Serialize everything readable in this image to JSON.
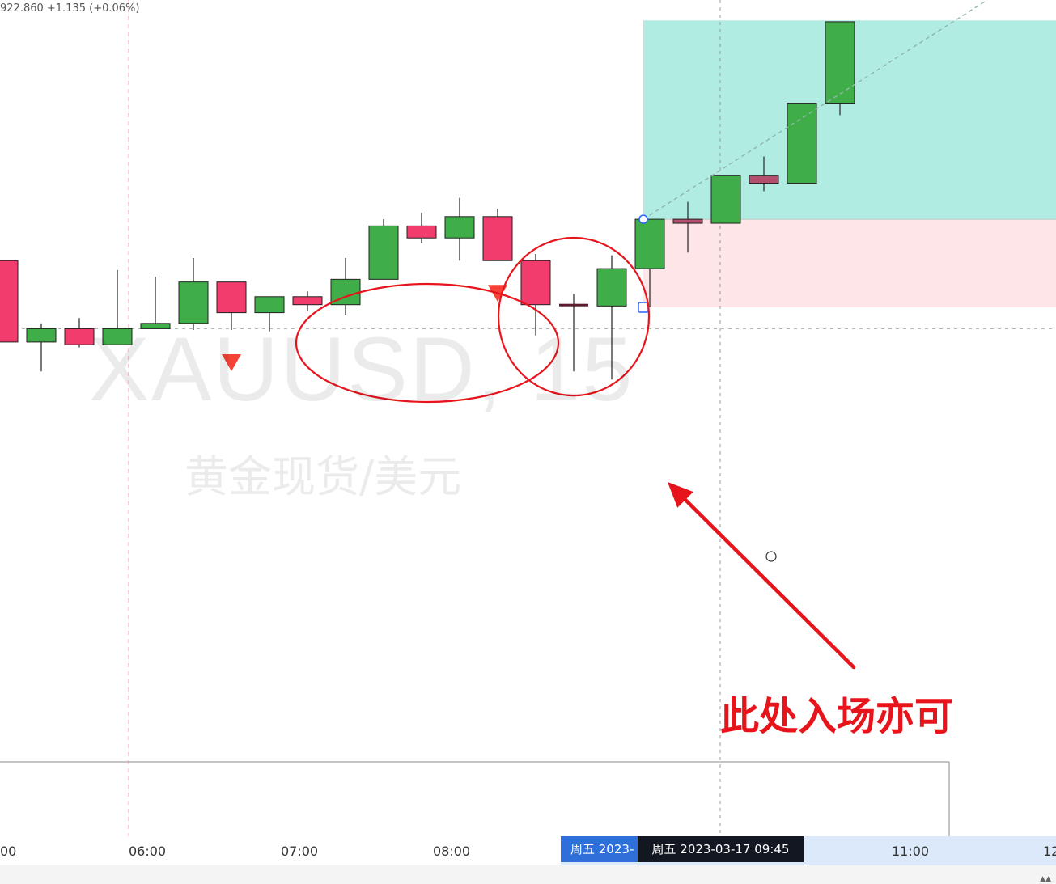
{
  "header": {
    "ohlc_text": "922.860 +1.135 (+0.06%)"
  },
  "watermark": {
    "symbol": "XAUUSD, 15",
    "description": "黄金现货/美元"
  },
  "annotation": {
    "text": "此处入场亦可"
  },
  "time_axis": {
    "ticks": [
      "00",
      "06:00",
      "07:00",
      "08:00",
      "11:00",
      "12"
    ],
    "range_start_label": "周五 2023-",
    "crosshair_label": "周五 2023-03-17   09:45"
  },
  "colors": {
    "bull": "#3fae48",
    "bear": "#f23c6d",
    "bear_candle_in_profit_zone": "#b3506f",
    "profit_zone": "#b1ece2",
    "loss_zone": "#fde5e8",
    "annotation": "#e8141c",
    "signal_triangle": "#f44336"
  },
  "chart_data": {
    "type": "candlestick",
    "symbol": "XAUUSD",
    "timeframe": "15",
    "x_ticks": [
      "06:00",
      "07:00",
      "08:00",
      "11:00"
    ],
    "crosshair_time": "2023-03-17 09:45",
    "candles": [
      {
        "o": 5.35,
        "h": 5.35,
        "l": 4.74,
        "c": 4.74
      },
      {
        "o": 4.74,
        "h": 4.88,
        "l": 4.52,
        "c": 4.84
      },
      {
        "o": 4.84,
        "h": 4.92,
        "l": 4.7,
        "c": 4.72
      },
      {
        "o": 4.72,
        "h": 5.28,
        "l": 4.72,
        "c": 4.84
      },
      {
        "o": 4.84,
        "h": 5.23,
        "l": 4.84,
        "c": 4.88
      },
      {
        "o": 4.88,
        "h": 5.37,
        "l": 4.83,
        "c": 5.19
      },
      {
        "o": 5.19,
        "h": 5.19,
        "l": 4.83,
        "c": 4.96
      },
      {
        "o": 4.96,
        "h": 5.07,
        "l": 4.82,
        "c": 5.08
      },
      {
        "o": 5.08,
        "h": 5.12,
        "l": 4.97,
        "c": 5.02
      },
      {
        "o": 5.02,
        "h": 5.37,
        "l": 4.94,
        "c": 5.21
      },
      {
        "o": 5.21,
        "h": 5.66,
        "l": 5.21,
        "c": 5.61
      },
      {
        "o": 5.61,
        "h": 5.71,
        "l": 5.48,
        "c": 5.52
      },
      {
        "o": 5.52,
        "h": 5.82,
        "l": 5.35,
        "c": 5.68
      },
      {
        "o": 5.68,
        "h": 5.74,
        "l": 5.35,
        "c": 5.35
      },
      {
        "o": 5.35,
        "h": 5.4,
        "l": 4.79,
        "c": 5.02
      },
      {
        "o": 5.02,
        "h": 5.1,
        "l": 4.52,
        "c": 5.01
      },
      {
        "o": 5.01,
        "h": 5.39,
        "l": 4.46,
        "c": 5.29
      },
      {
        "o": 5.29,
        "h": 5.66,
        "l": 5.0,
        "c": 5.66
      },
      {
        "o": 5.66,
        "h": 5.79,
        "l": 5.41,
        "c": 5.63
      },
      {
        "o": 5.63,
        "h": 5.99,
        "l": 5.63,
        "c": 5.99
      },
      {
        "o": 5.99,
        "h": 6.13,
        "l": 5.87,
        "c": 5.93
      },
      {
        "o": 5.93,
        "h": 6.53,
        "l": 5.93,
        "c": 6.53
      },
      {
        "o": 6.53,
        "h": 7.14,
        "l": 6.44,
        "c": 7.14
      }
    ],
    "signal_markers": [
      {
        "candle_index": 6,
        "type": "down"
      },
      {
        "candle_index": 13,
        "type": "down"
      }
    ],
    "position_tool": {
      "entry_candle_index": 17,
      "entry": 5.66,
      "target": 7.15,
      "stop": 5.0
    },
    "crosshair_price": 4.84,
    "highlights": [
      {
        "shape": "ellipse",
        "candle_range": [
          10,
          13
        ]
      },
      {
        "shape": "ellipse",
        "candle_range": [
          14,
          16
        ]
      }
    ]
  }
}
